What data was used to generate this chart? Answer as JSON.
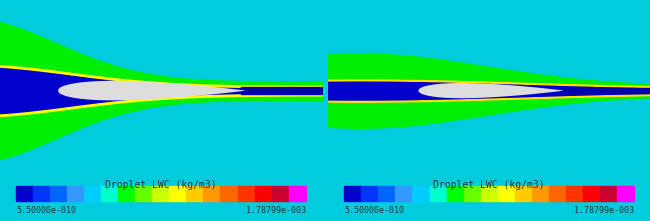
{
  "bg_color": "#00CCDD",
  "colorbar_label": "Droplet LWC (kg/m3)",
  "cbar_min_label": "5.50000e-010",
  "cbar_max_label": "1.78799e-003",
  "colorbar_colors": [
    "#0000CC",
    "#0033FF",
    "#0066FF",
    "#3399FF",
    "#00CCFF",
    "#00FFCC",
    "#00FF00",
    "#66FF00",
    "#CCFF00",
    "#FFFF00",
    "#FFCC00",
    "#FF9900",
    "#FF6600",
    "#FF3300",
    "#FF0000",
    "#CC0033",
    "#FF00FF"
  ],
  "airfoil_color": "#CCCCCC",
  "panel_bg": "#00CCDD",
  "font_color": "#333333",
  "font_size": 7,
  "figsize": [
    6.5,
    2.21
  ],
  "dpi": 100
}
